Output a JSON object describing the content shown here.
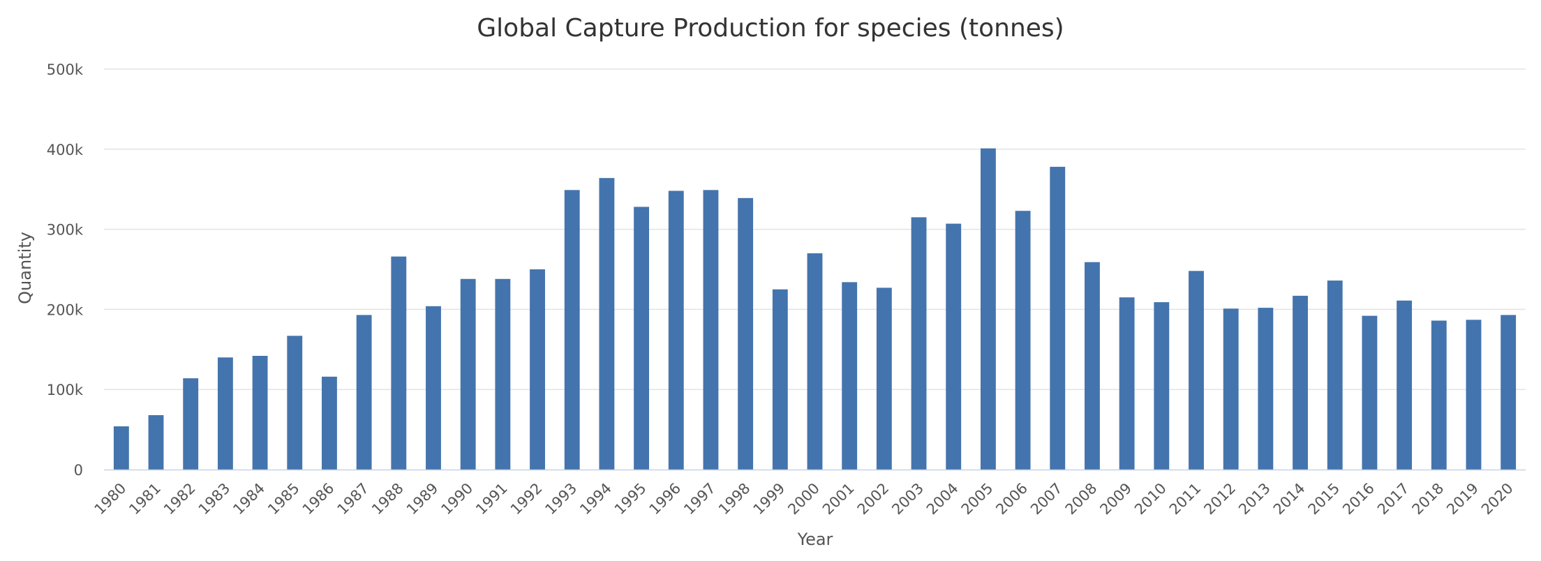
{
  "chart_data": {
    "type": "bar",
    "title": "Global Capture Production for species (tonnes)",
    "xlabel": "Year",
    "ylabel": "Quantity",
    "ylim": [
      0,
      500000
    ],
    "yticks": [
      0,
      100000,
      200000,
      300000,
      400000,
      500000
    ],
    "ytick_labels": [
      "0",
      "100k",
      "200k",
      "300k",
      "400k",
      "500k"
    ],
    "grid": true,
    "bar_color": "#4474ad",
    "categories": [
      "1980",
      "1981",
      "1982",
      "1983",
      "1984",
      "1985",
      "1986",
      "1987",
      "1988",
      "1989",
      "1990",
      "1991",
      "1992",
      "1993",
      "1994",
      "1995",
      "1996",
      "1997",
      "1998",
      "1999",
      "2000",
      "2001",
      "2002",
      "2003",
      "2004",
      "2005",
      "2006",
      "2007",
      "2008",
      "2009",
      "2010",
      "2011",
      "2012",
      "2013",
      "2014",
      "2015",
      "2016",
      "2017",
      "2018",
      "2019",
      "2020"
    ],
    "values": [
      54000,
      68000,
      114000,
      140000,
      142000,
      167000,
      116000,
      193000,
      266000,
      204000,
      238000,
      238000,
      250000,
      349000,
      364000,
      328000,
      348000,
      349000,
      339000,
      225000,
      270000,
      234000,
      227000,
      315000,
      307000,
      401000,
      323000,
      378000,
      259000,
      215000,
      209000,
      248000,
      201000,
      202000,
      217000,
      236000,
      192000,
      211000,
      186000,
      187000,
      193000
    ]
  }
}
